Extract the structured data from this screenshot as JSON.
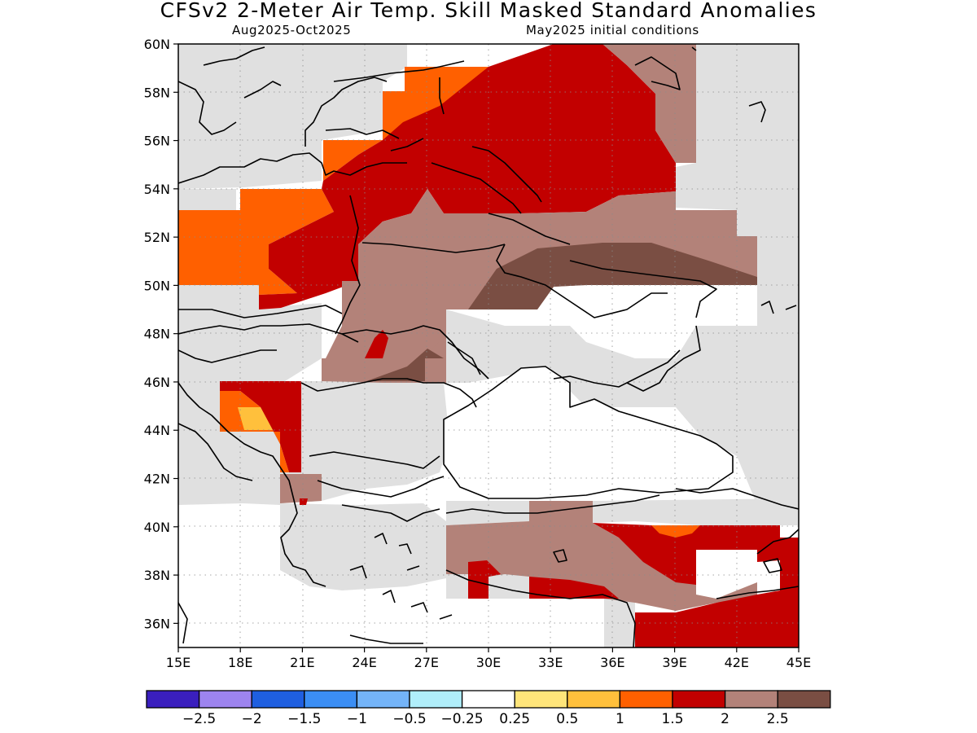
{
  "title": "CFSv2 2-Meter Air Temp. Skill Masked Standard Anomalies",
  "subtitle_left": "Aug2025-Oct2025",
  "subtitle_right": "May2025 initial conditions",
  "map": {
    "region": "Eastern Europe, Black Sea and Anatolia",
    "lat_ticks": [
      "60N",
      "58N",
      "56N",
      "54N",
      "52N",
      "50N",
      "48N",
      "46N",
      "44N",
      "42N",
      "40N",
      "38N",
      "36N"
    ],
    "lon_ticks": [
      "15E",
      "18E",
      "21E",
      "24E",
      "27E",
      "30E",
      "33E",
      "36E",
      "39E",
      "42E",
      "45E"
    ],
    "grid": "dotted",
    "features": [
      {
        "name": "anomaly-zone-russia-belarus",
        "category": "2 to 2.5"
      },
      {
        "name": "anomaly-zone-baltic-orange",
        "category": "1.5 to 2"
      },
      {
        "name": "anomaly-zone-central-europe-orange",
        "category": "1.5 to 2"
      },
      {
        "name": "anomaly-zone-poland-red",
        "category": "2 to 2.5"
      },
      {
        "name": "anomaly-zone-ukraine-brown",
        "category": "2.5 and above"
      },
      {
        "name": "anomaly-zone-eastern-ukraine-dark",
        "category": "2.5 and above"
      },
      {
        "name": "anomaly-zone-moldova-dark",
        "category": "2.5 and above"
      },
      {
        "name": "anomaly-zone-balkans-red",
        "category": "2 to 2.5"
      },
      {
        "name": "anomaly-zone-balkans-yellow",
        "category": "0.25 to 1"
      },
      {
        "name": "anomaly-zone-turkey-brown",
        "category": "2.5 and above"
      },
      {
        "name": "anomaly-zone-east-turkey-red",
        "category": "2 to 2.5"
      },
      {
        "name": "anomaly-zone-syria-red",
        "category": "2 to 2.5"
      },
      {
        "name": "black-sea",
        "category": "water"
      }
    ]
  },
  "legend": {
    "colors": [
      "#3a1fbe",
      "#9d84ef",
      "#1f5fe0",
      "#3b8ef4",
      "#74b4f8",
      "#b0eefa",
      "#ffffff",
      "#ffe57a",
      "#ffc03c",
      "#ff6000",
      "#c20000",
      "#b38279",
      "#7a4e43"
    ],
    "labels": [
      "-2.5",
      "-2",
      "-1.5",
      "-1",
      "-0.5",
      "-0.25",
      "0.25",
      "0.5",
      "1",
      "1.5",
      "2",
      "2.5"
    ]
  },
  "colors": {
    "gray_masked": "#e0e0e0",
    "orange": "#ff6000",
    "light_orange": "#ffc03c",
    "red": "#c20000",
    "brown": "#b38279",
    "dark_brown": "#7a4e43"
  }
}
